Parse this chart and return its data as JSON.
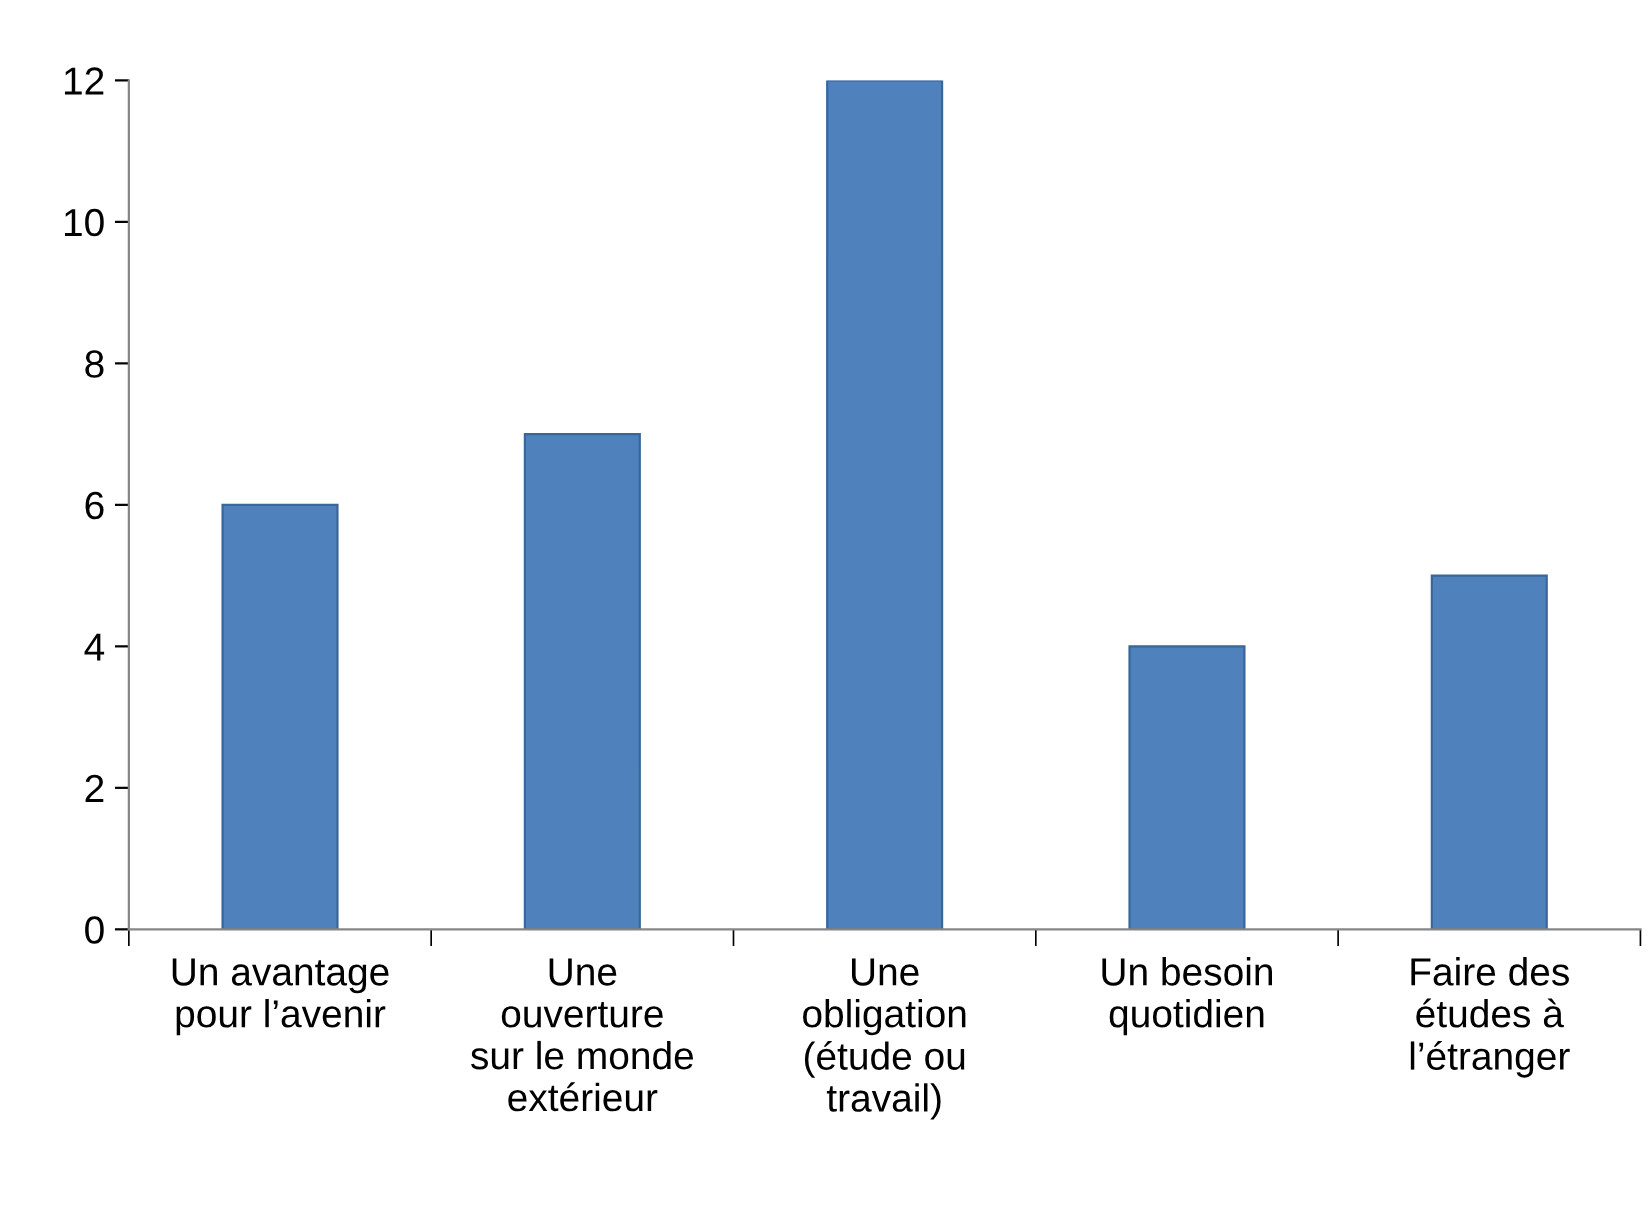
{
  "chart_data": {
    "type": "bar",
    "categories": [
      "Un avantage\npour l’avenir",
      "Une\nouverture\nsur le monde\nextérieur",
      "Une\nobligation\n(étude ou\ntravail)",
      "Un besoin\nquotidien",
      "Faire des\nétudes à\nl’étranger"
    ],
    "values": [
      6,
      7,
      12,
      4,
      5
    ],
    "color": "#4f81bd",
    "ylim": [
      0,
      12
    ],
    "yticks": [
      0,
      2,
      4,
      6,
      8,
      10,
      12
    ],
    "grid": false
  }
}
